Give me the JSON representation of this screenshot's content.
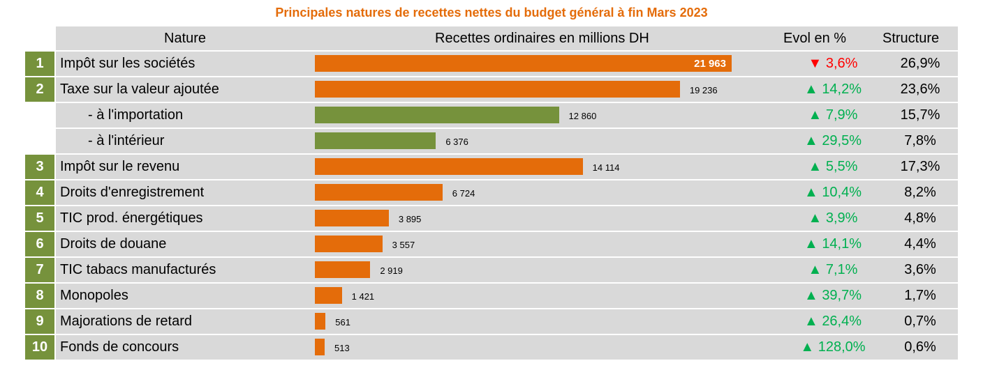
{
  "title": "Principales natures de recettes nettes du budget général à fin Mars 2023",
  "headers": {
    "nature": "Nature",
    "recettes": "Recettes ordinaires en millions DH",
    "evol": "Evol en %",
    "structure": "Structure"
  },
  "colors": {
    "orange": "#e46c0a",
    "green": "#76923c",
    "up": "#00b050",
    "down": "#ff0000",
    "row_bg": "#d9d9d9"
  },
  "chart_data": {
    "type": "bar",
    "title": "Principales natures de recettes nettes du budget général à fin Mars 2023",
    "ylabel": "Recettes ordinaires en millions DH",
    "xlim": [
      0,
      26000
    ],
    "rows": [
      {
        "rank": "1",
        "nature": "Impôt sur les sociétés",
        "value": 21963,
        "value_label": "21 963",
        "evol": "3,6%",
        "dir": "down",
        "structure": "26,9%",
        "sub": false
      },
      {
        "rank": "2",
        "nature": "Taxe sur la valeur ajoutée",
        "value": 19236,
        "value_label": "19 236",
        "evol": "14,2%",
        "dir": "up",
        "structure": "23,6%",
        "sub": false
      },
      {
        "rank": "",
        "nature": "- à l'importation",
        "value": 12860,
        "value_label": "12 860",
        "evol": "7,9%",
        "dir": "up",
        "structure": "15,7%",
        "sub": true
      },
      {
        "rank": "",
        "nature": "- à l'intérieur",
        "value": 6376,
        "value_label": "6 376",
        "evol": "29,5%",
        "dir": "up",
        "structure": "7,8%",
        "sub": true
      },
      {
        "rank": "3",
        "nature": "Impôt sur le revenu",
        "value": 14114,
        "value_label": "14 114",
        "evol": "5,5%",
        "dir": "up",
        "structure": "17,3%",
        "sub": false
      },
      {
        "rank": "4",
        "nature": "Droits d'enregistrement",
        "value": 6724,
        "value_label": "6 724",
        "evol": "10,4%",
        "dir": "up",
        "structure": "8,2%",
        "sub": false
      },
      {
        "rank": "5",
        "nature": "TIC prod. énergétiques",
        "value": 3895,
        "value_label": "3 895",
        "evol": "3,9%",
        "dir": "up",
        "structure": "4,8%",
        "sub": false
      },
      {
        "rank": "6",
        "nature": "Droits de douane",
        "value": 3557,
        "value_label": "3 557",
        "evol": "14,1%",
        "dir": "up",
        "structure": "4,4%",
        "sub": false
      },
      {
        "rank": "7",
        "nature": "TIC tabacs manufacturés",
        "value": 2919,
        "value_label": "2 919",
        "evol": "7,1%",
        "dir": "up",
        "structure": "3,6%",
        "sub": false
      },
      {
        "rank": "8",
        "nature": "Monopoles",
        "value": 1421,
        "value_label": "1 421",
        "evol": "39,7%",
        "dir": "up",
        "structure": "1,7%",
        "sub": false
      },
      {
        "rank": "9",
        "nature": "Majorations de retard",
        "value": 561,
        "value_label": "561",
        "evol": "26,4%",
        "dir": "up",
        "structure": "0,7%",
        "sub": false
      },
      {
        "rank": "10",
        "nature": "Fonds de concours",
        "value": 513,
        "value_label": "513",
        "evol": "128,0%",
        "dir": "up",
        "structure": "0,6%",
        "sub": false
      }
    ]
  }
}
